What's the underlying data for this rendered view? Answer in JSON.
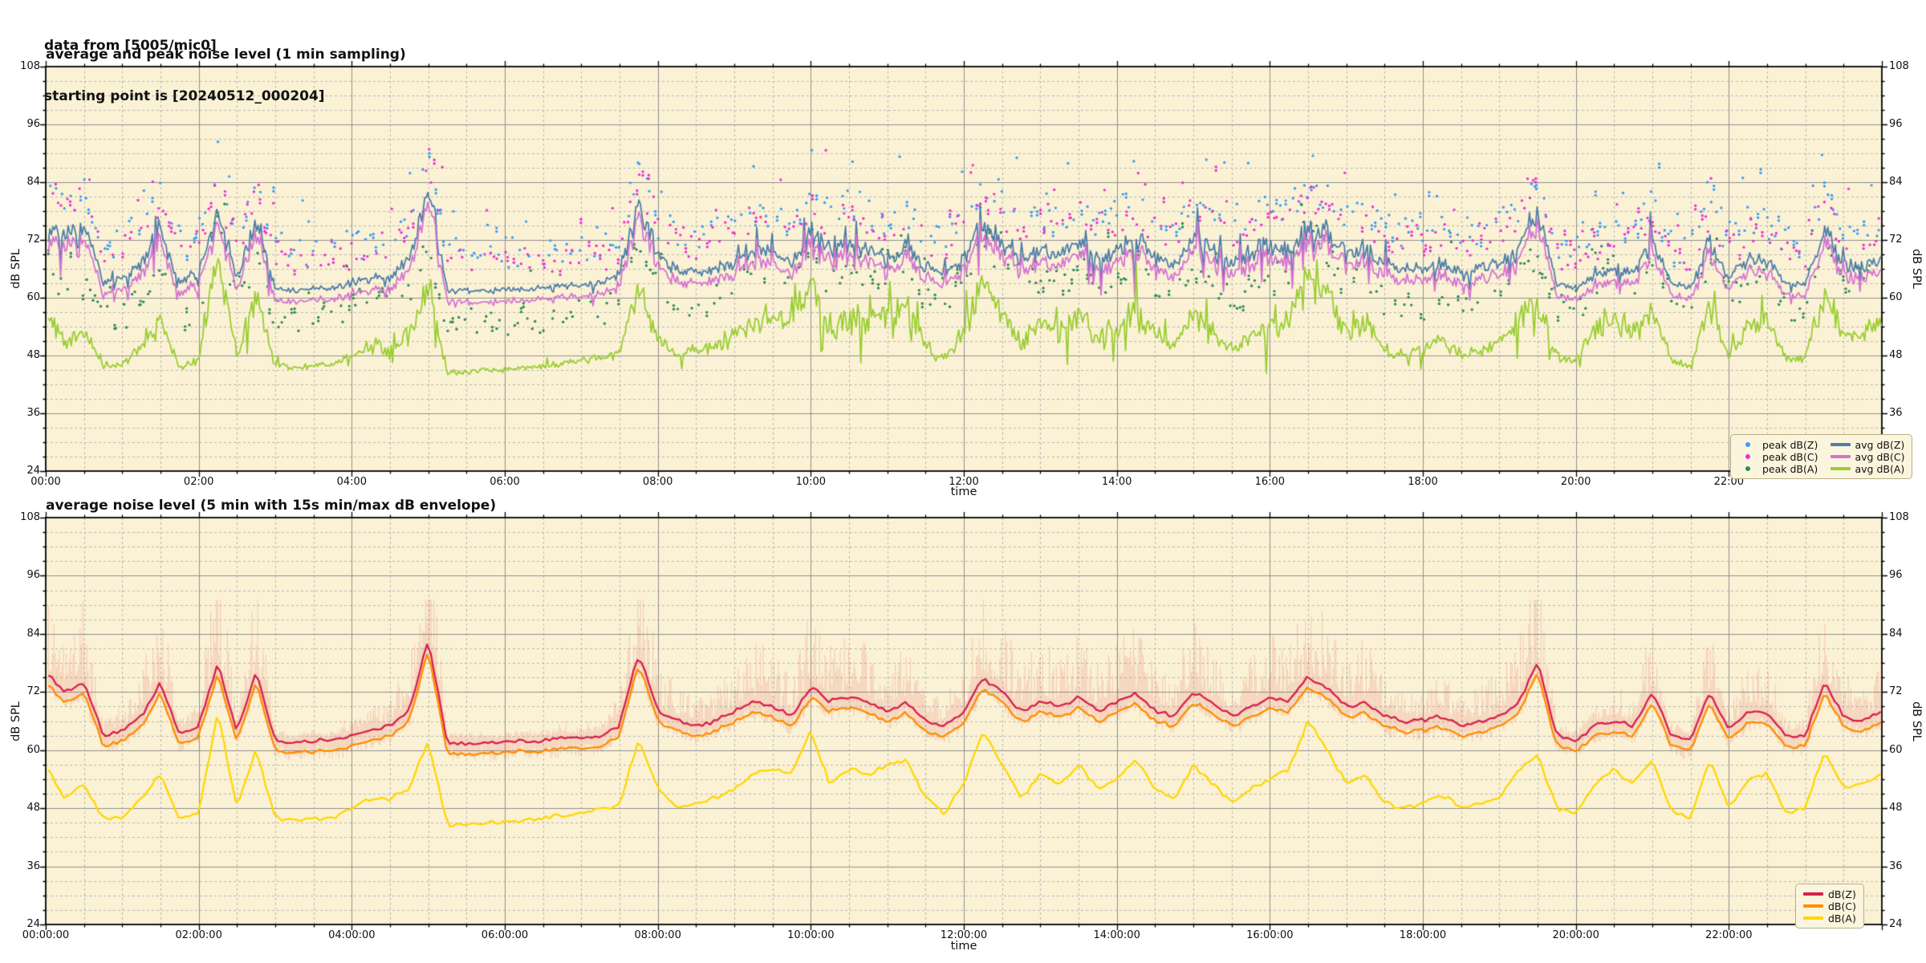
{
  "header": {
    "line1": "data from [5005/mic0]",
    "line2": "starting point is [20240512_000204]"
  },
  "colors": {
    "figure_bg": "#ffffff",
    "plot_bg": "#FBF2D5",
    "grid_major": "#8f8f8f",
    "grid_minor": "#b5b5b5",
    "axis": "#000000",
    "text": "#111111",
    "peak_dBZ": "#3d9df0",
    "peak_dBC": "#ef2fd4",
    "peak_dBA": "#2E8B57",
    "avg_dBZ": "#4d7ea8",
    "avg_dBC": "#d673d2",
    "avg_dBA": "#9ACD32",
    "dBZ": "#d81e4c",
    "dBC": "#ff8c00",
    "dBA": "#ffd700",
    "envelope": "rgba(223,90,85,0.26)",
    "legend_bg": "#FCF5DD",
    "legend_border": "#b9ae86"
  },
  "charts": [
    {
      "title": "average and peak noise level (1 min sampling)",
      "xlabel": "time",
      "ylabel_left": "dB SPL",
      "ylabel_right": "dB SPL",
      "yticks": [
        24,
        36,
        48,
        60,
        72,
        84,
        96,
        108
      ],
      "xtick_hours": [
        0,
        2,
        4,
        6,
        8,
        10,
        12,
        14,
        16,
        18,
        20,
        22
      ],
      "xtick_labels": [
        "00:00",
        "02:00",
        "04:00",
        "06:00",
        "08:00",
        "10:00",
        "12:00",
        "14:00",
        "16:00",
        "18:00",
        "20:00",
        "22:00"
      ],
      "legend": [
        {
          "label": "peak dB(Z)",
          "marker": "dot",
          "color_key": "peak_dBZ"
        },
        {
          "label": "peak dB(C)",
          "marker": "dot",
          "color_key": "peak_dBC"
        },
        {
          "label": "peak dB(A)",
          "marker": "dot",
          "color_key": "peak_dBA"
        },
        {
          "label": "avg dB(Z)",
          "marker": "line",
          "color_key": "avg_dBZ"
        },
        {
          "label": "avg dB(C)",
          "marker": "line",
          "color_key": "avg_dBC"
        },
        {
          "label": "avg dB(A)",
          "marker": "line",
          "color_key": "avg_dBA"
        }
      ]
    },
    {
      "title": "average noise level (5 min with 15s min/max dB envelope)",
      "xlabel": "time",
      "ylabel_left": "dB SPL",
      "ylabel_right": "dB SPL",
      "yticks": [
        24,
        36,
        48,
        60,
        72,
        84,
        96,
        108
      ],
      "xtick_hours": [
        0,
        2,
        4,
        6,
        8,
        10,
        12,
        14,
        16,
        18,
        20,
        22
      ],
      "xtick_labels": [
        "00:00:00",
        "02:00:00",
        "04:00:00",
        "06:00:00",
        "08:00:00",
        "10:00:00",
        "12:00:00",
        "14:00:00",
        "16:00:00",
        "18:00:00",
        "20:00:00",
        "22:00:00"
      ],
      "legend": [
        {
          "label": "dB(Z)",
          "marker": "line",
          "color_key": "dBZ"
        },
        {
          "label": "dB(C)",
          "marker": "line",
          "color_key": "dBC"
        },
        {
          "label": "dB(A)",
          "marker": "line",
          "color_key": "dBA"
        }
      ]
    }
  ],
  "chart_data": [
    {
      "type": "line",
      "subtype": "scatter+line",
      "title": "average and peak noise level (1 min sampling)",
      "xlabel": "time",
      "ylabel": "dB SPL",
      "xlim_hours": [
        0,
        24
      ],
      "ylim": [
        24,
        108
      ],
      "x_start_hours": 0,
      "x_step_hours": 0.25,
      "grid": true,
      "legend_position": "lower right",
      "series": [
        {
          "name": "avg dB(Z)",
          "style": "line",
          "color_key": "avg_dBZ",
          "values": [
            76,
            72,
            74,
            63,
            64,
            67,
            74,
            63,
            65,
            78,
            64,
            76,
            62,
            61.5,
            62,
            62,
            63,
            64,
            65,
            68,
            83,
            61.5,
            61.5,
            61.5,
            61.5,
            62,
            62,
            62.5,
            62.5,
            63,
            65,
            80,
            68,
            66,
            65,
            66,
            68,
            70,
            69,
            67,
            73,
            70,
            71,
            70,
            68,
            70,
            66,
            65,
            68,
            75,
            72,
            68,
            70,
            69,
            71,
            68,
            70,
            72,
            68,
            67,
            72,
            70,
            67,
            69,
            71,
            70,
            75,
            73,
            69,
            70,
            67,
            66,
            66,
            67,
            65,
            66,
            67,
            70,
            78,
            63,
            62,
            65,
            66,
            65,
            72,
            63,
            62,
            72,
            64,
            68,
            68,
            63,
            63,
            74,
            67,
            66,
            68
          ]
        },
        {
          "name": "avg dB(C)",
          "style": "line",
          "color_key": "avg_dBC",
          "values": [
            74,
            70,
            72,
            61,
            62,
            65,
            72,
            61,
            63,
            76,
            62,
            74,
            60,
            59.5,
            60,
            60,
            61,
            62,
            63,
            66,
            81,
            59.5,
            59.5,
            59.5,
            59.5,
            60,
            60,
            60.5,
            60.5,
            61,
            63,
            78,
            66,
            64,
            63,
            64,
            66,
            68,
            67,
            65,
            71,
            68,
            69,
            68,
            66,
            68,
            64,
            63,
            66,
            73,
            70,
            66,
            68,
            67,
            69,
            66,
            68,
            70,
            66,
            65,
            70,
            68,
            65,
            67,
            69,
            68,
            73,
            71,
            67,
            68,
            65,
            64,
            64,
            65,
            63,
            64,
            65,
            68,
            76,
            61,
            60,
            63,
            64,
            63,
            70,
            61,
            60,
            70,
            62,
            66,
            66,
            61,
            61,
            72,
            65,
            64,
            66
          ]
        },
        {
          "name": "avg dB(A)",
          "style": "line",
          "color_key": "avg_dBA",
          "values": [
            57,
            50,
            53,
            46,
            46,
            50,
            55,
            45.5,
            47,
            68,
            48,
            60,
            46,
            45.5,
            46,
            46,
            48,
            50,
            50,
            52,
            62,
            44.5,
            44.5,
            45,
            45,
            45.5,
            46,
            46.5,
            47,
            47.5,
            49,
            62,
            52,
            48,
            49,
            50,
            52,
            55,
            56,
            55,
            64,
            53,
            56,
            55,
            57,
            58,
            50,
            47,
            53,
            64,
            57,
            50,
            55,
            53,
            57,
            52,
            54,
            58,
            52,
            50,
            57,
            53,
            49,
            52,
            54,
            56,
            66,
            60,
            53,
            55,
            49,
            48,
            49,
            51,
            48,
            49,
            50,
            56,
            59,
            48,
            47,
            53,
            56,
            53,
            58,
            47,
            46,
            58,
            48,
            54,
            55,
            47,
            48,
            60,
            52,
            53,
            55
          ]
        },
        {
          "name": "peak dB(Z)",
          "style": "scatter",
          "color_key": "peak_dBZ",
          "values": [
            87,
            83,
            85,
            74,
            75,
            78,
            85,
            74,
            76,
            89,
            75,
            87,
            73,
            72.5,
            73,
            73,
            74,
            75,
            76,
            79,
            94,
            72.5,
            72.5,
            72.5,
            72.5,
            73,
            73,
            73.5,
            73.5,
            74,
            76,
            91,
            79,
            77,
            76,
            77,
            79,
            81,
            80,
            78,
            84,
            81,
            82,
            81,
            79,
            81,
            77,
            76,
            79,
            86,
            83,
            79,
            81,
            80,
            82,
            79,
            81,
            83,
            79,
            78,
            83,
            81,
            78,
            80,
            82,
            81,
            86,
            84,
            80,
            81,
            78,
            77,
            77,
            78,
            76,
            77,
            78,
            81,
            89,
            74,
            73,
            76,
            77,
            76,
            83,
            74,
            73,
            83,
            75,
            79,
            79,
            74,
            74,
            85,
            78,
            77,
            79
          ]
        },
        {
          "name": "peak dB(C)",
          "style": "scatter",
          "color_key": "peak_dBC",
          "values": [
            85,
            81,
            83,
            72,
            73,
            76,
            83,
            72,
            74,
            87,
            73,
            85,
            71,
            70.5,
            71,
            71,
            72,
            73,
            74,
            77,
            92,
            70.5,
            70.5,
            70.5,
            70.5,
            71,
            71,
            71.5,
            71.5,
            72,
            74,
            89,
            77,
            75,
            74,
            75,
            77,
            79,
            78,
            76,
            82,
            79,
            80,
            79,
            77,
            79,
            75,
            74,
            77,
            84,
            81,
            77,
            79,
            78,
            80,
            77,
            79,
            81,
            77,
            76,
            81,
            79,
            76,
            78,
            80,
            79,
            84,
            82,
            78,
            79,
            76,
            75,
            75,
            76,
            74,
            75,
            76,
            79,
            87,
            72,
            71,
            74,
            75,
            74,
            81,
            72,
            71,
            81,
            73,
            77,
            77,
            72,
            72,
            83,
            76,
            75,
            77
          ]
        },
        {
          "name": "peak dB(A)",
          "style": "scatter",
          "color_key": "peak_dBA",
          "values": [
            70,
            63,
            66,
            59,
            59,
            63,
            68,
            58.5,
            60,
            81,
            61,
            73,
            59,
            58.5,
            59,
            59,
            61,
            63,
            63,
            65,
            75,
            57.5,
            57.5,
            58,
            58,
            58.5,
            59,
            59.5,
            60,
            60.5,
            62,
            75,
            65,
            61,
            62,
            63,
            65,
            68,
            69,
            68,
            77,
            66,
            69,
            68,
            70,
            71,
            63,
            60,
            66,
            77,
            70,
            63,
            68,
            66,
            70,
            65,
            67,
            71,
            65,
            63,
            70,
            66,
            62,
            65,
            67,
            69,
            79,
            73,
            66,
            68,
            62,
            61,
            62,
            64,
            61,
            62,
            63,
            69,
            72,
            61,
            60,
            66,
            69,
            66,
            71,
            60,
            59,
            71,
            61,
            67,
            68,
            60,
            61,
            73,
            65,
            66,
            68
          ]
        }
      ]
    },
    {
      "type": "line",
      "subtype": "line+band",
      "title": "average noise level (5 min with 15s min/max dB envelope)",
      "xlabel": "time",
      "ylabel": "dB SPL",
      "xlim_hours": [
        0,
        24
      ],
      "ylim": [
        24,
        108
      ],
      "x_start_hours": 0,
      "x_step_hours": 0.25,
      "grid": true,
      "legend_position": "lower right",
      "band": {
        "around": "dB(Z)",
        "description": "15s min/max envelope",
        "color_key": "envelope",
        "max_up_excursion_dB": 14,
        "max_down_excursion_dB": 4
      },
      "series": [
        {
          "name": "dB(Z)",
          "style": "line",
          "color_key": "dBZ",
          "values": [
            76,
            72,
            74,
            63,
            64,
            67,
            74,
            63,
            65,
            78,
            64,
            76,
            62,
            61.5,
            62,
            62,
            63,
            64,
            65,
            68,
            83,
            61.5,
            61.5,
            61.5,
            61.5,
            62,
            62,
            62.5,
            62.5,
            63,
            65,
            80,
            68,
            66,
            65,
            66,
            68,
            70,
            69,
            67,
            73,
            70,
            71,
            70,
            68,
            70,
            66,
            65,
            68,
            75,
            72,
            68,
            70,
            69,
            71,
            68,
            70,
            72,
            68,
            67,
            72,
            70,
            67,
            69,
            71,
            70,
            75,
            73,
            69,
            70,
            67,
            66,
            66,
            67,
            65,
            66,
            67,
            70,
            78,
            63,
            62,
            65,
            66,
            65,
            72,
            63,
            62,
            72,
            64,
            68,
            68,
            63,
            63,
            74,
            67,
            66,
            68
          ]
        },
        {
          "name": "dB(C)",
          "style": "line",
          "color_key": "dBC",
          "values": [
            74,
            70,
            72,
            61,
            62,
            65,
            72,
            61,
            63,
            76,
            62,
            74,
            60,
            59.5,
            60,
            60,
            61,
            62,
            63,
            66,
            81,
            59.5,
            59.5,
            59.5,
            59.5,
            60,
            60,
            60.5,
            60.5,
            61,
            63,
            78,
            66,
            64,
            63,
            64,
            66,
            68,
            67,
            65,
            71,
            68,
            69,
            68,
            66,
            68,
            64,
            63,
            66,
            73,
            70,
            66,
            68,
            67,
            69,
            66,
            68,
            70,
            66,
            65,
            70,
            68,
            65,
            67,
            69,
            68,
            73,
            71,
            67,
            68,
            65,
            64,
            64,
            65,
            63,
            64,
            65,
            68,
            76,
            61,
            60,
            63,
            64,
            63,
            70,
            61,
            60,
            70,
            62,
            66,
            66,
            61,
            61,
            72,
            65,
            64,
            66
          ]
        },
        {
          "name": "dB(A)",
          "style": "line",
          "color_key": "dBA",
          "values": [
            57,
            50,
            53,
            46,
            46,
            50,
            55,
            45.5,
            47,
            68,
            48,
            60,
            46,
            45.5,
            46,
            46,
            48,
            50,
            50,
            52,
            62,
            44.5,
            44.5,
            45,
            45,
            45.5,
            46,
            46.5,
            47,
            47.5,
            49,
            62,
            52,
            48,
            49,
            50,
            52,
            55,
            56,
            55,
            64,
            53,
            56,
            55,
            57,
            58,
            50,
            47,
            53,
            64,
            57,
            50,
            55,
            53,
            57,
            52,
            54,
            58,
            52,
            50,
            57,
            53,
            49,
            52,
            54,
            56,
            66,
            60,
            53,
            55,
            49,
            48,
            49,
            51,
            48,
            49,
            50,
            56,
            59,
            48,
            47,
            53,
            56,
            53,
            58,
            47,
            46,
            58,
            48,
            54,
            55,
            47,
            48,
            60,
            52,
            53,
            55
          ]
        }
      ]
    }
  ]
}
